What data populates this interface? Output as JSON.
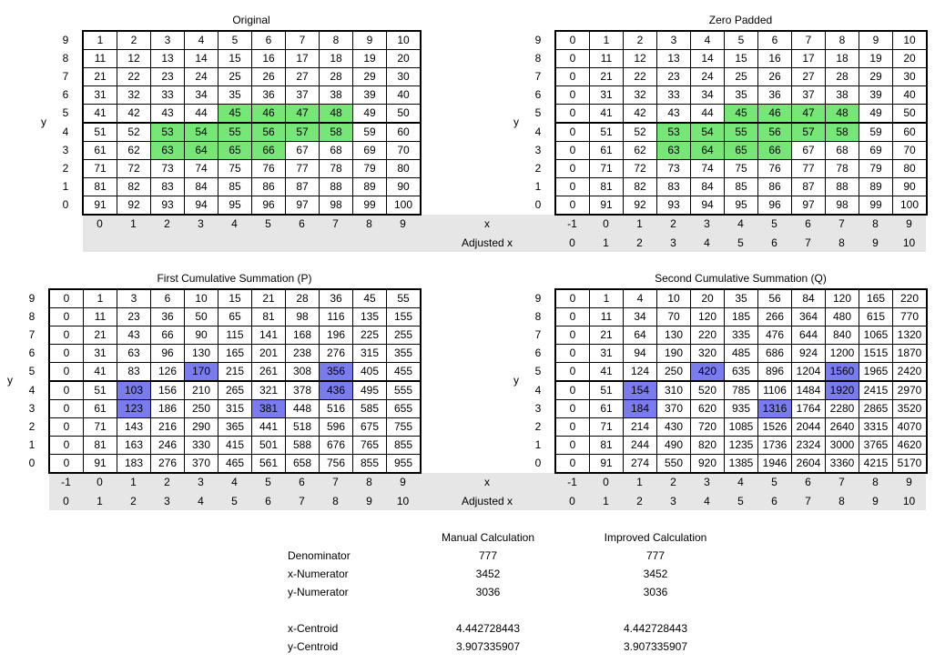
{
  "sections": [
    {
      "x_label": "x",
      "adjusted_x_label": "Adjusted x",
      "grids": [
        {
          "title": "Original",
          "y_label": "y",
          "row_labels": [
            9,
            8,
            7,
            6,
            5,
            4,
            3,
            2,
            1,
            0
          ],
          "rows": [
            [
              1,
              2,
              3,
              4,
              5,
              6,
              7,
              8,
              9,
              10
            ],
            [
              11,
              12,
              13,
              14,
              15,
              16,
              17,
              18,
              19,
              20
            ],
            [
              21,
              22,
              23,
              24,
              25,
              26,
              27,
              28,
              29,
              30
            ],
            [
              31,
              32,
              33,
              34,
              35,
              36,
              37,
              38,
              39,
              40
            ],
            [
              41,
              42,
              43,
              44,
              45,
              46,
              47,
              48,
              49,
              50
            ],
            [
              51,
              52,
              53,
              54,
              55,
              56,
              57,
              58,
              59,
              60
            ],
            [
              61,
              62,
              63,
              64,
              65,
              66,
              67,
              68,
              69,
              70
            ],
            [
              71,
              72,
              73,
              74,
              75,
              76,
              77,
              78,
              79,
              80
            ],
            [
              81,
              82,
              83,
              84,
              85,
              86,
              87,
              88,
              89,
              90
            ],
            [
              91,
              92,
              93,
              94,
              95,
              96,
              97,
              98,
              99,
              100
            ]
          ],
          "x_labels": [
            0,
            1,
            2,
            3,
            4,
            5,
            6,
            7,
            8,
            9
          ],
          "highlight": {
            "color": "#76e676",
            "cells": [
              [
                4,
                4
              ],
              [
                4,
                5
              ],
              [
                4,
                6
              ],
              [
                4,
                7
              ],
              [
                5,
                2
              ],
              [
                5,
                3
              ],
              [
                5,
                4
              ],
              [
                5,
                5
              ],
              [
                5,
                6
              ],
              [
                5,
                7
              ],
              [
                6,
                2
              ],
              [
                6,
                3
              ],
              [
                6,
                4
              ],
              [
                6,
                5
              ]
            ]
          }
        },
        {
          "title": "Zero Padded",
          "y_label": "y",
          "row_labels": [
            9,
            8,
            7,
            6,
            5,
            4,
            3,
            2,
            1,
            0
          ],
          "rows": [
            [
              0,
              1,
              2,
              3,
              4,
              5,
              6,
              7,
              8,
              9,
              10
            ],
            [
              0,
              11,
              12,
              13,
              14,
              15,
              16,
              17,
              18,
              19,
              20
            ],
            [
              0,
              21,
              22,
              23,
              24,
              25,
              26,
              27,
              28,
              29,
              30
            ],
            [
              0,
              31,
              32,
              33,
              34,
              35,
              36,
              37,
              38,
              39,
              40
            ],
            [
              0,
              41,
              42,
              43,
              44,
              45,
              46,
              47,
              48,
              49,
              50
            ],
            [
              0,
              51,
              52,
              53,
              54,
              55,
              56,
              57,
              58,
              59,
              60
            ],
            [
              0,
              61,
              62,
              63,
              64,
              65,
              66,
              67,
              68,
              69,
              70
            ],
            [
              0,
              71,
              72,
              73,
              74,
              75,
              76,
              77,
              78,
              79,
              80
            ],
            [
              0,
              81,
              82,
              83,
              84,
              85,
              86,
              87,
              88,
              89,
              90
            ],
            [
              0,
              91,
              92,
              93,
              94,
              95,
              96,
              97,
              98,
              99,
              100
            ]
          ],
          "x_labels": [
            -1,
            0,
            1,
            2,
            3,
            4,
            5,
            6,
            7,
            8,
            9
          ],
          "adjusted_x": [
            0,
            1,
            2,
            3,
            4,
            5,
            6,
            7,
            8,
            9,
            10
          ],
          "highlight": {
            "color": "#76e676",
            "cells": [
              [
                4,
                5
              ],
              [
                4,
                6
              ],
              [
                4,
                7
              ],
              [
                4,
                8
              ],
              [
                5,
                3
              ],
              [
                5,
                4
              ],
              [
                5,
                5
              ],
              [
                5,
                6
              ],
              [
                5,
                7
              ],
              [
                5,
                8
              ],
              [
                6,
                3
              ],
              [
                6,
                4
              ],
              [
                6,
                5
              ],
              [
                6,
                6
              ]
            ]
          }
        }
      ]
    },
    {
      "x_label": "x",
      "adjusted_x_label": "Adjusted x",
      "grids": [
        {
          "title": "First Cumulative Summation (P)",
          "y_label": "y",
          "row_labels": [
            9,
            8,
            7,
            6,
            5,
            4,
            3,
            2,
            1,
            0
          ],
          "rows": [
            [
              0,
              1,
              3,
              6,
              10,
              15,
              21,
              28,
              36,
              45,
              55
            ],
            [
              0,
              11,
              23,
              36,
              50,
              65,
              81,
              98,
              116,
              135,
              155
            ],
            [
              0,
              21,
              43,
              66,
              90,
              115,
              141,
              168,
              196,
              225,
              255
            ],
            [
              0,
              31,
              63,
              96,
              130,
              165,
              201,
              238,
              276,
              315,
              355
            ],
            [
              0,
              41,
              83,
              126,
              170,
              215,
              261,
              308,
              356,
              405,
              455
            ],
            [
              0,
              51,
              103,
              156,
              210,
              265,
              321,
              378,
              436,
              495,
              555
            ],
            [
              0,
              61,
              123,
              186,
              250,
              315,
              381,
              448,
              516,
              585,
              655
            ],
            [
              0,
              71,
              143,
              216,
              290,
              365,
              441,
              518,
              596,
              675,
              755
            ],
            [
              0,
              81,
              163,
              246,
              330,
              415,
              501,
              588,
              676,
              765,
              855
            ],
            [
              0,
              91,
              183,
              276,
              370,
              465,
              561,
              658,
              756,
              855,
              955
            ]
          ],
          "x_labels": [
            -1,
            0,
            1,
            2,
            3,
            4,
            5,
            6,
            7,
            8,
            9
          ],
          "adjusted_x": [
            0,
            1,
            2,
            3,
            4,
            5,
            6,
            7,
            8,
            9,
            10
          ],
          "highlight": {
            "color": "#7b7bf0",
            "cells": [
              [
                4,
                4
              ],
              [
                4,
                8
              ],
              [
                5,
                2
              ],
              [
                5,
                8
              ],
              [
                6,
                2
              ],
              [
                6,
                6
              ]
            ]
          }
        },
        {
          "title": "Second Cumulative Summation (Q)",
          "y_label": "y",
          "row_labels": [
            9,
            8,
            7,
            6,
            5,
            4,
            3,
            2,
            1,
            0
          ],
          "rows": [
            [
              0,
              1,
              4,
              10,
              20,
              35,
              56,
              84,
              120,
              165,
              220
            ],
            [
              0,
              11,
              34,
              70,
              120,
              185,
              266,
              364,
              480,
              615,
              770
            ],
            [
              0,
              21,
              64,
              130,
              220,
              335,
              476,
              644,
              840,
              1065,
              1320
            ],
            [
              0,
              31,
              94,
              190,
              320,
              485,
              686,
              924,
              1200,
              1515,
              1870
            ],
            [
              0,
              41,
              124,
              250,
              420,
              635,
              896,
              1204,
              1560,
              1965,
              2420
            ],
            [
              0,
              51,
              154,
              310,
              520,
              785,
              1106,
              1484,
              1920,
              2415,
              2970
            ],
            [
              0,
              61,
              184,
              370,
              620,
              935,
              1316,
              1764,
              2280,
              2865,
              3520
            ],
            [
              0,
              71,
              214,
              430,
              720,
              1085,
              1526,
              2044,
              2640,
              3315,
              4070
            ],
            [
              0,
              81,
              244,
              490,
              820,
              1235,
              1736,
              2324,
              3000,
              3765,
              4620
            ],
            [
              0,
              91,
              274,
              550,
              920,
              1385,
              1946,
              2604,
              3360,
              4215,
              5170
            ]
          ],
          "x_labels": [
            -1,
            0,
            1,
            2,
            3,
            4,
            5,
            6,
            7,
            8,
            9
          ],
          "adjusted_x": [
            0,
            1,
            2,
            3,
            4,
            5,
            6,
            7,
            8,
            9,
            10
          ],
          "highlight": {
            "color": "#7b7bf0",
            "cells": [
              [
                4,
                4
              ],
              [
                4,
                8
              ],
              [
                5,
                2
              ],
              [
                5,
                8
              ],
              [
                6,
                2
              ],
              [
                6,
                6
              ]
            ]
          }
        }
      ]
    }
  ],
  "calc": {
    "columns": [
      "Manual Calculation",
      "Improved Calculation"
    ],
    "rows": [
      {
        "label": "Denominator",
        "values": [
          777,
          777
        ]
      },
      {
        "label": "x-Numerator",
        "values": [
          3452,
          3452
        ]
      },
      {
        "label": "y-Numerator",
        "values": [
          3036,
          3036
        ]
      },
      {
        "label": "x-Centroid",
        "values": [
          4.442728443,
          4.442728443
        ]
      },
      {
        "label": "y-Centroid",
        "values": [
          3.907335907,
          3.907335907
        ]
      }
    ]
  }
}
